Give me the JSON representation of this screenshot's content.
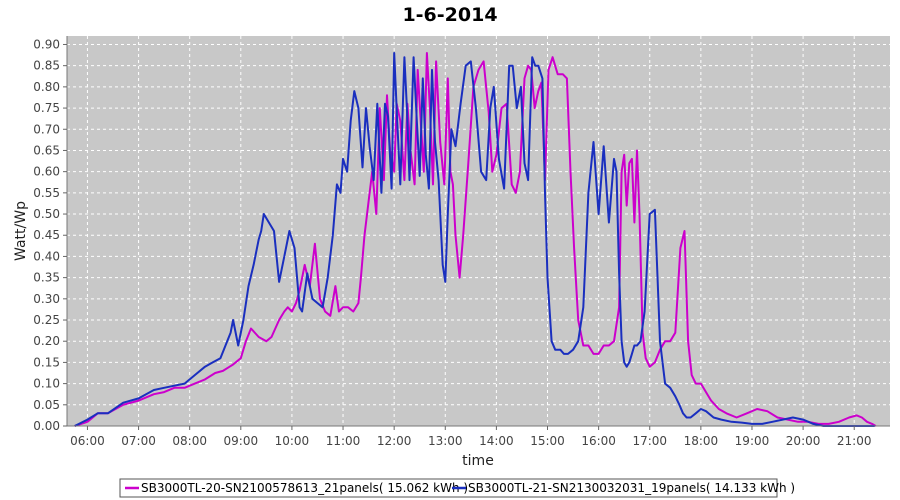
{
  "chart_data": {
    "type": "line",
    "title": "1-6-2014",
    "xlabel": "time",
    "ylabel": "Watt/Wp",
    "xlim": [
      5.6,
      21.7
    ],
    "ylim": [
      0,
      0.92
    ],
    "x_ticks": [
      {
        "v": 6,
        "label": "06:00"
      },
      {
        "v": 7,
        "label": "07:00"
      },
      {
        "v": 8,
        "label": "08:00"
      },
      {
        "v": 9,
        "label": "09:00"
      },
      {
        "v": 10,
        "label": "10:00"
      },
      {
        "v": 11,
        "label": "11:00"
      },
      {
        "v": 12,
        "label": "12:00"
      },
      {
        "v": 13,
        "label": "13:00"
      },
      {
        "v": 14,
        "label": "14:00"
      },
      {
        "v": 15,
        "label": "15:00"
      },
      {
        "v": 16,
        "label": "16:00"
      },
      {
        "v": 17,
        "label": "17:00"
      },
      {
        "v": 18,
        "label": "18:00"
      },
      {
        "v": 19,
        "label": "19:00"
      },
      {
        "v": 20,
        "label": "20:00"
      },
      {
        "v": 21,
        "label": "21:00"
      }
    ],
    "y_ticks": [
      "0.00",
      "0.05",
      "0.10",
      "0.15",
      "0.20",
      "0.25",
      "0.30",
      "0.35",
      "0.40",
      "0.45",
      "0.50",
      "0.55",
      "0.60",
      "0.65",
      "0.70",
      "0.75",
      "0.80",
      "0.85",
      "0.90"
    ],
    "grid": true,
    "legend_position": "bottom",
    "background": "#c8c8c8",
    "series": [
      {
        "name": "SB3000TL-20-SN2100578613_21panels( 15.062 kWh )",
        "color": "#cc00cc",
        "x": [
          5.75,
          6,
          6.2,
          6.4,
          6.7,
          7,
          7.3,
          7.5,
          7.7,
          7.9,
          8.1,
          8.3,
          8.5,
          8.65,
          8.78,
          8.85,
          9,
          9.1,
          9.2,
          9.35,
          9.5,
          9.6,
          9.75,
          9.85,
          9.92,
          10,
          10.08,
          10.15,
          10.25,
          10.35,
          10.45,
          10.55,
          10.65,
          10.75,
          10.85,
          10.92,
          11.0,
          11.1,
          11.2,
          11.3,
          11.35,
          11.42,
          11.5,
          11.57,
          11.65,
          11.72,
          11.8,
          11.86,
          11.92,
          12.0,
          12.05,
          12.12,
          12.2,
          12.26,
          12.32,
          12.4,
          12.46,
          12.52,
          12.58,
          12.64,
          12.7,
          12.76,
          12.82,
          12.9,
          12.98,
          13.05,
          13.1,
          13.15,
          13.2,
          13.28,
          13.35,
          13.45,
          13.55,
          13.65,
          13.75,
          13.85,
          13.92,
          14.0,
          14.1,
          14.2,
          14.3,
          14.38,
          14.46,
          14.55,
          14.62,
          14.68,
          14.75,
          14.82,
          14.88,
          14.95,
          15.02,
          15.1,
          15.2,
          15.3,
          15.38,
          15.45,
          15.52,
          15.6,
          15.7,
          15.8,
          15.9,
          16.0,
          16.1,
          16.2,
          16.3,
          16.4,
          16.45,
          16.5,
          16.55,
          16.6,
          16.65,
          16.7,
          16.75,
          16.8,
          16.86,
          16.92,
          17.0,
          17.1,
          17.2,
          17.3,
          17.4,
          17.5,
          17.6,
          17.68,
          17.75,
          17.82,
          17.9,
          18.0,
          18.1,
          18.2,
          18.35,
          18.5,
          18.7,
          18.9,
          19.1,
          19.3,
          19.5,
          19.7,
          19.9,
          20.1,
          20.3,
          20.5,
          20.7,
          20.9,
          21.05,
          21.15,
          21.25,
          21.35,
          21.42
        ],
        "y": [
          0.0,
          0.01,
          0.03,
          0.03,
          0.05,
          0.06,
          0.075,
          0.08,
          0.09,
          0.09,
          0.1,
          0.11,
          0.125,
          0.13,
          0.14,
          0.145,
          0.16,
          0.2,
          0.23,
          0.21,
          0.2,
          0.21,
          0.25,
          0.27,
          0.28,
          0.27,
          0.29,
          0.32,
          0.38,
          0.33,
          0.43,
          0.3,
          0.27,
          0.26,
          0.33,
          0.27,
          0.28,
          0.28,
          0.27,
          0.29,
          0.35,
          0.45,
          0.53,
          0.6,
          0.5,
          0.75,
          0.58,
          0.78,
          0.65,
          0.6,
          0.76,
          0.72,
          0.58,
          0.76,
          0.65,
          0.57,
          0.84,
          0.72,
          0.6,
          0.88,
          0.75,
          0.57,
          0.86,
          0.67,
          0.57,
          0.82,
          0.6,
          0.57,
          0.45,
          0.35,
          0.45,
          0.62,
          0.8,
          0.84,
          0.86,
          0.74,
          0.6,
          0.64,
          0.75,
          0.76,
          0.57,
          0.55,
          0.6,
          0.82,
          0.85,
          0.84,
          0.75,
          0.79,
          0.81,
          0.58,
          0.84,
          0.87,
          0.83,
          0.83,
          0.82,
          0.6,
          0.42,
          0.25,
          0.19,
          0.19,
          0.17,
          0.17,
          0.19,
          0.19,
          0.2,
          0.28,
          0.6,
          0.64,
          0.52,
          0.62,
          0.63,
          0.48,
          0.65,
          0.5,
          0.22,
          0.16,
          0.14,
          0.15,
          0.18,
          0.2,
          0.2,
          0.22,
          0.42,
          0.46,
          0.2,
          0.12,
          0.1,
          0.1,
          0.08,
          0.06,
          0.04,
          0.03,
          0.02,
          0.03,
          0.04,
          0.035,
          0.02,
          0.015,
          0.01,
          0.01,
          0.005,
          0.005,
          0.01,
          0.02,
          0.025,
          0.02,
          0.01,
          0.005,
          0.0
        ]
      },
      {
        "name": "SB3000TL-21-SN2130032031_19panels( 14.133 kWh )",
        "color": "#1a2fbf",
        "x": [
          5.75,
          6,
          6.2,
          6.4,
          6.7,
          7,
          7.3,
          7.5,
          7.7,
          7.9,
          8.1,
          8.3,
          8.45,
          8.6,
          8.7,
          8.8,
          8.85,
          8.95,
          9.05,
          9.15,
          9.25,
          9.35,
          9.4,
          9.45,
          9.55,
          9.65,
          9.75,
          9.85,
          9.95,
          10.05,
          10.15,
          10.2,
          10.3,
          10.4,
          10.5,
          10.6,
          10.7,
          10.8,
          10.88,
          10.95,
          11.0,
          11.08,
          11.15,
          11.22,
          11.3,
          11.38,
          11.45,
          11.52,
          11.6,
          11.67,
          11.75,
          11.82,
          11.88,
          11.95,
          12.0,
          12.06,
          12.12,
          12.2,
          12.25,
          12.3,
          12.38,
          12.44,
          12.5,
          12.56,
          12.62,
          12.68,
          12.74,
          12.8,
          12.87,
          12.95,
          13.0,
          13.05,
          13.12,
          13.2,
          13.3,
          13.4,
          13.5,
          13.6,
          13.7,
          13.8,
          13.88,
          13.95,
          14.05,
          14.15,
          14.25,
          14.32,
          14.4,
          14.48,
          14.55,
          14.62,
          14.7,
          14.76,
          14.82,
          14.9,
          14.95,
          15.0,
          15.08,
          15.15,
          15.25,
          15.32,
          15.4,
          15.5,
          15.6,
          15.7,
          15.8,
          15.9,
          16.0,
          16.1,
          16.2,
          16.3,
          16.35,
          16.4,
          16.45,
          16.5,
          16.55,
          16.6,
          16.65,
          16.7,
          16.75,
          16.82,
          16.9,
          17.0,
          17.1,
          17.2,
          17.3,
          17.4,
          17.5,
          17.58,
          17.65,
          17.72,
          17.8,
          17.9,
          18.0,
          18.1,
          18.25,
          18.4,
          18.6,
          18.8,
          19.0,
          19.2,
          19.4,
          19.6,
          19.8,
          20.0,
          20.2,
          20.4,
          20.6,
          20.8,
          21.0,
          21.1,
          21.2,
          21.3,
          21.4
        ],
        "y": [
          0.0,
          0.015,
          0.03,
          0.03,
          0.055,
          0.065,
          0.085,
          0.09,
          0.095,
          0.1,
          0.12,
          0.14,
          0.15,
          0.16,
          0.19,
          0.22,
          0.25,
          0.19,
          0.25,
          0.33,
          0.38,
          0.44,
          0.46,
          0.5,
          0.48,
          0.46,
          0.34,
          0.4,
          0.46,
          0.42,
          0.28,
          0.27,
          0.36,
          0.3,
          0.29,
          0.28,
          0.35,
          0.45,
          0.57,
          0.55,
          0.63,
          0.6,
          0.72,
          0.79,
          0.75,
          0.61,
          0.75,
          0.66,
          0.58,
          0.76,
          0.55,
          0.76,
          0.73,
          0.56,
          0.88,
          0.72,
          0.57,
          0.87,
          0.75,
          0.58,
          0.87,
          0.73,
          0.59,
          0.82,
          0.64,
          0.56,
          0.84,
          0.67,
          0.58,
          0.38,
          0.34,
          0.5,
          0.7,
          0.66,
          0.76,
          0.85,
          0.86,
          0.75,
          0.6,
          0.58,
          0.75,
          0.8,
          0.63,
          0.56,
          0.85,
          0.85,
          0.75,
          0.8,
          0.62,
          0.58,
          0.87,
          0.85,
          0.85,
          0.82,
          0.55,
          0.35,
          0.2,
          0.18,
          0.18,
          0.17,
          0.17,
          0.18,
          0.2,
          0.28,
          0.55,
          0.67,
          0.5,
          0.66,
          0.48,
          0.63,
          0.6,
          0.36,
          0.2,
          0.15,
          0.14,
          0.15,
          0.17,
          0.19,
          0.19,
          0.2,
          0.27,
          0.5,
          0.51,
          0.2,
          0.1,
          0.09,
          0.07,
          0.05,
          0.03,
          0.02,
          0.02,
          0.03,
          0.04,
          0.035,
          0.02,
          0.015,
          0.01,
          0.008,
          0.005,
          0.005,
          0.01,
          0.015,
          0.02,
          0.015,
          0.005,
          0.0,
          0.0,
          0.0,
          0.0,
          0.0,
          0.0,
          0.0,
          0.0
        ]
      }
    ]
  }
}
